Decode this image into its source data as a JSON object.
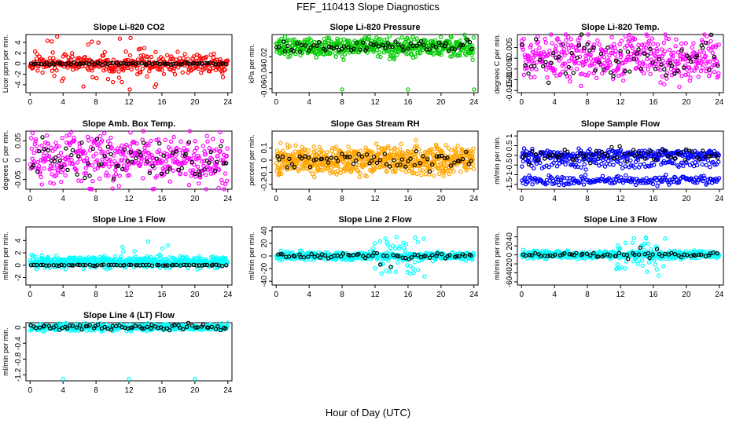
{
  "figure": {
    "title": "FEF_110413  Slope Diagnostics",
    "xlabel": "Hour of Day (UTC)"
  },
  "chart_data": [
    {
      "type": "scatter",
      "title": "Slope Li-820 CO2",
      "ylabel": "Licor ppm per min.",
      "xlim": [
        -0.5,
        24.5
      ],
      "ylim": [
        -5.5,
        5.5
      ],
      "xticks": [
        0,
        4,
        8,
        12,
        16,
        20,
        24
      ],
      "yticks": [
        -4,
        -2,
        0,
        2,
        4
      ],
      "series": [
        {
          "color": "#ff0000",
          "n": 380,
          "spread": 0.9,
          "spike_prob": 0.12,
          "spike": 3.5,
          "spike_window": [
            2,
            16
          ]
        },
        {
          "color": "#000000",
          "n": 75,
          "spread": 0.12
        }
      ]
    },
    {
      "type": "scatter",
      "title": "Slope Li-820 Pressure",
      "ylabel": "kPa per min.",
      "xlim": [
        -0.5,
        24.5
      ],
      "ylim": [
        -0.065,
        0.008
      ],
      "xticks": [
        0,
        4,
        8,
        12,
        16,
        20,
        24
      ],
      "yticks": [
        -0.06,
        -0.04,
        -0.02
      ],
      "series": [
        {
          "color": "#00cc00",
          "n": 500,
          "spread": 0.006,
          "center": -0.008,
          "outliers": [
            [
              8,
              -0.061
            ],
            [
              16,
              -0.061
            ],
            [
              24,
              -0.061
            ]
          ]
        },
        {
          "color": "#000000",
          "n": 70,
          "spread": 0.004,
          "center": -0.007
        }
      ]
    },
    {
      "type": "scatter",
      "title": "Slope Li-820 Temp.",
      "ylabel": "degrees C per min.",
      "xlim": [
        -0.5,
        24.5
      ],
      "ylim": [
        -0.016,
        0.011
      ],
      "xticks": [
        0,
        4,
        8,
        12,
        16,
        20,
        24
      ],
      "yticks": [
        -0.015,
        -0.01,
        -0.005,
        0,
        0.005
      ],
      "series": [
        {
          "color": "#ff00ff",
          "n": 420,
          "spread": 0.0055
        },
        {
          "color": "#000000",
          "n": 70,
          "spread": 0.0045
        }
      ]
    },
    {
      "type": "scatter",
      "title": "Slope Amb. Box Temp.",
      "ylabel": "degrees C per min.",
      "xlim": [
        -0.5,
        24.5
      ],
      "ylim": [
        -0.075,
        0.075
      ],
      "xticks": [
        0,
        4,
        8,
        12,
        16,
        20,
        24
      ],
      "yticks": [
        -0.05,
        0,
        0.05
      ],
      "series": [
        {
          "color": "#ff00ff",
          "n": 420,
          "spread": 0.032
        },
        {
          "color": "#000000",
          "n": 70,
          "spread": 0.025
        }
      ]
    },
    {
      "type": "scatter",
      "title": "Slope Gas Stream RH",
      "ylabel": "percent per min.",
      "xlim": [
        -0.5,
        24.5
      ],
      "ylim": [
        -0.24,
        0.24
      ],
      "xticks": [
        0,
        4,
        8,
        12,
        16,
        20,
        24
      ],
      "yticks": [
        -0.2,
        -0.1,
        0,
        0.1
      ],
      "series": [
        {
          "color": "#ffa500",
          "n": 700,
          "spread": 0.055
        },
        {
          "color": "#000000",
          "n": 65,
          "spread": 0.04
        }
      ]
    },
    {
      "type": "scatter",
      "title": "Slope Sample Flow",
      "ylabel": "ml/min per min.",
      "xlim": [
        -0.5,
        24.5
      ],
      "ylim": [
        -1.75,
        1.25
      ],
      "xticks": [
        0,
        4,
        8,
        12,
        16,
        20,
        24
      ],
      "yticks": [
        -1.5,
        -1,
        -0.5,
        0,
        0.5,
        1
      ],
      "series": [
        {
          "color": "#0000ff",
          "n": 260,
          "spread": 0.12,
          "center": 0.05
        },
        {
          "color": "#0000ff",
          "n": 200,
          "spread": 0.12,
          "center": -1.3
        },
        {
          "color": "#0000ff",
          "n": 120,
          "spread": 0.15,
          "center": -0.4
        },
        {
          "color": "#000000",
          "n": 65,
          "spread": 0.2
        }
      ]
    },
    {
      "type": "scatter",
      "title": "Slope Line 1 Flow",
      "ylabel": "ml/min per min.",
      "xlim": [
        -0.5,
        24.5
      ],
      "ylim": [
        -3.2,
        6.2
      ],
      "xticks": [
        0,
        4,
        8,
        12,
        16,
        20,
        24
      ],
      "yticks": [
        -2,
        0,
        2,
        4
      ],
      "series": [
        {
          "color": "#00ffff",
          "n": 550,
          "spread": 0.45,
          "center": 0.5,
          "spike_prob": 0.08,
          "spike": 2.5,
          "spike_window": [
            11,
            17
          ]
        },
        {
          "color": "#000000",
          "n": 65,
          "spread": 0.05
        }
      ]
    },
    {
      "type": "scatter",
      "title": "Slope Line 2 Flow",
      "ylabel": "ml/min per min.",
      "xlim": [
        -0.5,
        24.5
      ],
      "ylim": [
        -46,
        46
      ],
      "xticks": [
        0,
        4,
        8,
        12,
        16,
        20,
        24
      ],
      "yticks": [
        -40,
        -20,
        0,
        20,
        40
      ],
      "series": [
        {
          "color": "#00ffff",
          "n": 550,
          "spread": 3,
          "spike_prob": 0.25,
          "spike": 20,
          "spike_window": [
            11.5,
            18
          ]
        },
        {
          "color": "#000000",
          "n": 65,
          "spread": 2,
          "spike_prob": 0.3,
          "spike": 12,
          "spike_window": [
            12,
            17
          ]
        }
      ]
    },
    {
      "type": "scatter",
      "title": "Slope Line 3 Flow",
      "ylabel": "ml/min per min.",
      "xlim": [
        -0.5,
        24.5
      ],
      "ylim": [
        -67,
        62
      ],
      "xticks": [
        0,
        4,
        8,
        12,
        16,
        20,
        24
      ],
      "yticks": [
        -60,
        -40,
        -20,
        0,
        20,
        40
      ],
      "series": [
        {
          "color": "#00ffff",
          "n": 550,
          "spread": 4,
          "spike_prob": 0.25,
          "spike": 28,
          "spike_window": [
            11.5,
            17.5
          ]
        },
        {
          "color": "#000000",
          "n": 65,
          "spread": 2,
          "spike_prob": 0.3,
          "spike": 15,
          "spike_window": [
            12,
            17
          ]
        }
      ]
    },
    {
      "type": "scatter",
      "title": "Slope Line 4 (LT) Flow",
      "ylabel": "ml/min per min.",
      "xlim": [
        -0.5,
        24.5
      ],
      "ylim": [
        -1.35,
        0.12
      ],
      "xticks": [
        0,
        4,
        8,
        12,
        16,
        20,
        24
      ],
      "yticks": [
        -1.2,
        -0.8,
        -0.4,
        0
      ],
      "series": [
        {
          "color": "#00ffff",
          "n": 480,
          "spread": 0.04,
          "outliers": [
            [
              4,
              -1.3
            ],
            [
              12,
              -1.3
            ],
            [
              20,
              -1.3
            ]
          ]
        },
        {
          "color": "#000000",
          "n": 70,
          "spread": 0.04
        }
      ]
    }
  ]
}
